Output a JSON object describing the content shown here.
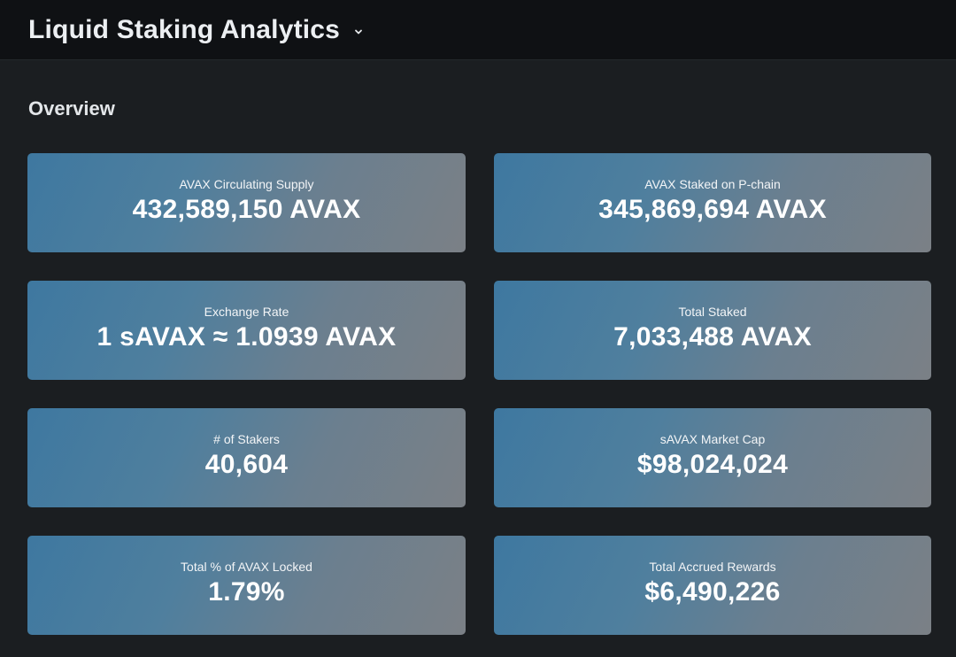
{
  "header": {
    "title": "Liquid Staking Analytics",
    "dropdown_icon": "chevron-down-icon"
  },
  "overview": {
    "title": "Overview",
    "cards": [
      {
        "label": "AVAX Circulating Supply",
        "value": "432,589,150 AVAX"
      },
      {
        "label": "AVAX Staked on P-chain",
        "value": "345,869,694 AVAX"
      },
      {
        "label": "Exchange Rate",
        "value": "1 sAVAX ≈ 1.0939 AVAX"
      },
      {
        "label": "Total Staked",
        "value": "7,033,488 AVAX"
      },
      {
        "label": "# of Stakers",
        "value": "40,604"
      },
      {
        "label": "sAVAX Market Cap",
        "value": "$98,024,024"
      },
      {
        "label": "Total % of AVAX Locked",
        "value": "1.79%"
      },
      {
        "label": "Total Accrued Rewards",
        "value": "$6,490,226"
      }
    ]
  },
  "colors": {
    "background": "#1b1e21",
    "topbar": "#0f1114",
    "card_gradient_start": "#3e78a0",
    "card_gradient_end": "#7b8086"
  }
}
